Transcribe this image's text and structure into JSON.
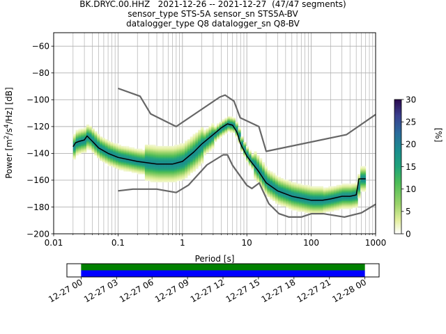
{
  "chart_data": [
    {
      "type": "heatmap",
      "title_lines": [
        "BK.DRYC.00.HHZ   2021-12-26 -- 2021-12-27  (47/47 segments)",
        "sensor_type STS-5A sensor_sn STS5A-BV",
        "datalogger_type Q8 datalogger_sn Q8-BV"
      ],
      "xlabel": "Period [s]",
      "ylabel_html": "Power [m<tspan baseline-shift=\"super\" font-size=\"9\">2</tspan>/s<tspan baseline-shift=\"super\" font-size=\"9\">4</tspan>/Hz] [dB]",
      "xscale": "log",
      "xlim": [
        0.01,
        1000
      ],
      "ylim": [
        -200,
        -50
      ],
      "x_ticks": [
        0.01,
        0.1,
        1,
        10,
        100,
        1000
      ],
      "x_tick_labels": [
        "0.01",
        "0.1",
        "1",
        "10",
        "100",
        "1000"
      ],
      "y_ticks": [
        -200,
        -180,
        -160,
        -140,
        -120,
        -100,
        -80,
        -60
      ],
      "y_tick_labels": [
        "−200",
        "−180",
        "−160",
        "−140",
        "−120",
        "−100",
        "−80",
        "−60"
      ],
      "grid": true,
      "colorbar": {
        "label": "[%]",
        "range": [
          0,
          30
        ],
        "ticks": [
          0,
          5,
          10,
          15,
          20,
          25,
          30
        ],
        "tick_labels": [
          "0",
          "5",
          "10",
          "15",
          "20",
          "25",
          "30"
        ]
      },
      "mode_curve": {
        "period": [
          0.02,
          0.022,
          0.025,
          0.03,
          0.033,
          0.04,
          0.05,
          0.07,
          0.1,
          0.2,
          0.4,
          0.7,
          1.0,
          1.5,
          2.0,
          3.0,
          4.0,
          5.0,
          6.0,
          7.0,
          8.0,
          10.0,
          12.0,
          15.0,
          20.0,
          30.0,
          50.0,
          100.0,
          150.0,
          200.0,
          300.0,
          400.0,
          500.0,
          550.0,
          700.0
        ],
        "power": [
          -135,
          -132,
          -131,
          -130,
          -127,
          -131,
          -136,
          -140,
          -143,
          -146,
          -148,
          -148,
          -146,
          -139,
          -133,
          -126,
          -121,
          -118,
          -119,
          -124,
          -133,
          -142,
          -147,
          -153,
          -162,
          -168,
          -172,
          -175,
          -175,
          -174,
          -172,
          -172,
          -171,
          -159,
          -159
        ]
      },
      "nhnm": {
        "period": [
          0.1,
          0.22,
          0.32,
          0.8,
          3.8,
          4.6,
          6.3,
          7.9,
          15.4,
          20.0,
          354.8,
          1000.0
        ],
        "power": [
          -91.5,
          -97.4,
          -110.5,
          -120.0,
          -98.0,
          -96.5,
          -101.0,
          -113.5,
          -120.0,
          -138.5,
          -126.0,
          -111.0
        ]
      },
      "nlnm": {
        "period": [
          0.1,
          0.17,
          0.4,
          0.8,
          1.24,
          2.4,
          4.3,
          5.0,
          6.0,
          10.0,
          12.0,
          15.6,
          21.9,
          31.6,
          45.0,
          70.0,
          101.0,
          154.0,
          328.0,
          600.0,
          1000.0
        ],
        "power": [
          -168.0,
          -166.7,
          -166.7,
          -169.2,
          -163.7,
          -148.6,
          -141.1,
          -141.1,
          -149.0,
          -163.8,
          -166.2,
          -162.1,
          -177.5,
          -185.0,
          -187.5,
          -187.5,
          -185.0,
          -185.0,
          -187.5,
          -184.4,
          -178.0
        ]
      }
    },
    {
      "type": "bar",
      "x_tick_labels": [
        "12-27 00",
        "12-27 03",
        "12-27 06",
        "12-27 09",
        "12-27 12",
        "12-27 15",
        "12-27 18",
        "12-27 21",
        "12-28 00"
      ],
      "x_tick_hours": [
        0,
        3,
        6,
        9,
        12,
        15,
        18,
        21,
        24
      ],
      "xlim_hours": [
        -1.2,
        25.2
      ],
      "coverage": [
        {
          "start_hour": 0,
          "end_hour": 24,
          "color": "#008000"
        },
        {
          "start_hour": 0,
          "end_hour": 24,
          "color": "#0000ff"
        }
      ]
    }
  ]
}
